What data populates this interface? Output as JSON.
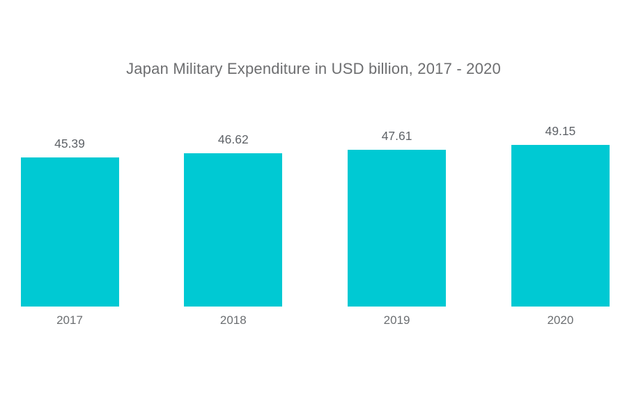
{
  "page": {
    "background_color": "#ffffff"
  },
  "chart_data": {
    "type": "bar",
    "title": "Japan Military Expenditure in USD billion, 2017 - 2020",
    "categories": [
      "2017",
      "2018",
      "2019",
      "2020"
    ],
    "values": [
      45.39,
      46.62,
      47.61,
      49.15
    ],
    "value_labels": [
      "45.39",
      "46.62",
      "47.61",
      "49.15"
    ],
    "xlabel": "",
    "ylabel": "",
    "ylim": [
      0,
      50
    ],
    "grid": false,
    "legend": "none",
    "axes_visible": false,
    "bar_color": "#00C9D3",
    "title_color": "#6d6e70",
    "value_label_color": "#5f6368",
    "category_label_color": "#6b6e71"
  }
}
